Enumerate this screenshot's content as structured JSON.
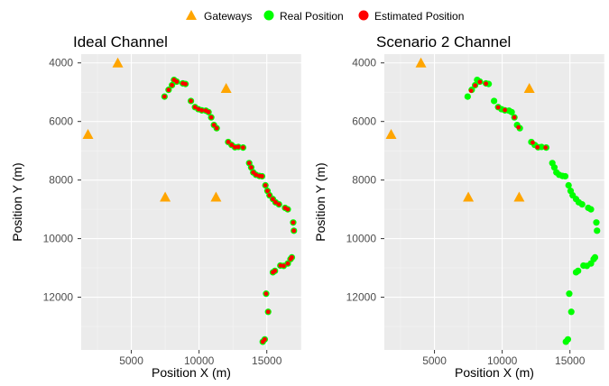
{
  "legend": {
    "items": [
      {
        "label": "Gateways",
        "shape": "triangle",
        "color": "#ffa500"
      },
      {
        "label": "Real Position",
        "shape": "circle",
        "color": "#00ff00"
      },
      {
        "label": "Estimated Position",
        "shape": "circle",
        "color": "#ff0000"
      }
    ]
  },
  "chart_data": [
    {
      "type": "scatter",
      "title": "Ideal Channel",
      "xlabel": "Position X (m)",
      "ylabel": "Position Y (m)",
      "xlim": [
        1300,
        17550
      ],
      "ylim": [
        3700,
        13800
      ],
      "y_reversed": true,
      "grid": true,
      "background": "#ebebeb",
      "gridline_color": "#ffffff",
      "xticks": [
        5000,
        10000,
        15000
      ],
      "xtick_labels": [
        "5000",
        "10000",
        "15000"
      ],
      "yticks": [
        4000,
        6000,
        8000,
        10000,
        12000
      ],
      "ytick_labels": [
        "4000",
        "6000",
        "8000",
        "10000",
        "12000"
      ],
      "legend_position": "top",
      "gateways": [
        [
          4000,
          4000
        ],
        [
          12000,
          4870
        ],
        [
          1800,
          6440
        ],
        [
          7500,
          8580
        ],
        [
          11250,
          8580
        ]
      ],
      "real": [
        [
          7450,
          5150
        ],
        [
          7750,
          4920
        ],
        [
          8000,
          4760
        ],
        [
          8150,
          4580
        ],
        [
          8350,
          4640
        ],
        [
          8800,
          4700
        ],
        [
          9000,
          4720
        ],
        [
          9400,
          5300
        ],
        [
          9700,
          5510
        ],
        [
          9950,
          5580
        ],
        [
          10200,
          5620
        ],
        [
          10500,
          5630
        ],
        [
          10700,
          5680
        ],
        [
          10900,
          5860
        ],
        [
          11100,
          6120
        ],
        [
          11300,
          6230
        ],
        [
          12150,
          6700
        ],
        [
          12400,
          6800
        ],
        [
          12650,
          6880
        ],
        [
          12900,
          6870
        ],
        [
          13250,
          6890
        ],
        [
          13700,
          7420
        ],
        [
          13850,
          7570
        ],
        [
          14000,
          7740
        ],
        [
          14200,
          7820
        ],
        [
          14450,
          7860
        ],
        [
          14650,
          7870
        ],
        [
          14900,
          8180
        ],
        [
          15050,
          8370
        ],
        [
          15200,
          8520
        ],
        [
          15450,
          8650
        ],
        [
          15650,
          8760
        ],
        [
          15900,
          8830
        ],
        [
          16350,
          8950
        ],
        [
          16550,
          9000
        ],
        [
          16950,
          9450
        ],
        [
          17000,
          9730
        ],
        [
          15450,
          11150
        ],
        [
          15600,
          11100
        ],
        [
          16000,
          10920
        ],
        [
          16250,
          10930
        ],
        [
          16550,
          10850
        ],
        [
          16750,
          10700
        ],
        [
          16850,
          10640
        ],
        [
          14950,
          11880
        ],
        [
          15100,
          12500
        ],
        [
          14850,
          13440
        ],
        [
          14700,
          13520
        ]
      ],
      "estimated": [
        [
          7450,
          5150
        ],
        [
          7750,
          4920
        ],
        [
          8000,
          4760
        ],
        [
          8150,
          4580
        ],
        [
          8350,
          4640
        ],
        [
          8800,
          4700
        ],
        [
          9000,
          4720
        ],
        [
          9400,
          5300
        ],
        [
          9700,
          5510
        ],
        [
          9950,
          5580
        ],
        [
          10200,
          5620
        ],
        [
          10500,
          5630
        ],
        [
          10700,
          5680
        ],
        [
          10900,
          5860
        ],
        [
          11100,
          6120
        ],
        [
          11300,
          6230
        ],
        [
          12150,
          6700
        ],
        [
          12400,
          6800
        ],
        [
          12650,
          6880
        ],
        [
          12900,
          6870
        ],
        [
          13250,
          6890
        ],
        [
          13700,
          7420
        ],
        [
          13850,
          7570
        ],
        [
          14000,
          7740
        ],
        [
          14200,
          7820
        ],
        [
          14450,
          7860
        ],
        [
          14650,
          7870
        ],
        [
          14900,
          8180
        ],
        [
          15050,
          8370
        ],
        [
          15200,
          8520
        ],
        [
          15450,
          8650
        ],
        [
          15650,
          8760
        ],
        [
          15900,
          8830
        ],
        [
          16350,
          8950
        ],
        [
          16550,
          9000
        ],
        [
          16950,
          9450
        ],
        [
          17000,
          9730
        ],
        [
          15450,
          11150
        ],
        [
          15600,
          11100
        ],
        [
          16000,
          10920
        ],
        [
          16250,
          10930
        ],
        [
          16550,
          10850
        ],
        [
          16750,
          10700
        ],
        [
          16850,
          10640
        ],
        [
          14950,
          11880
        ],
        [
          15100,
          12500
        ],
        [
          14850,
          13440
        ],
        [
          14700,
          13520
        ]
      ]
    },
    {
      "type": "scatter",
      "title": "Scenario 2 Channel",
      "xlabel": "Position X (m)",
      "ylabel": "Position Y (m)",
      "xlim": [
        1300,
        17550
      ],
      "ylim": [
        3700,
        13800
      ],
      "y_reversed": true,
      "grid": true,
      "background": "#ebebeb",
      "gridline_color": "#ffffff",
      "xticks": [
        5000,
        10000,
        15000
      ],
      "xtick_labels": [
        "5000",
        "10000",
        "15000"
      ],
      "yticks": [
        4000,
        6000,
        8000,
        10000,
        12000
      ],
      "ytick_labels": [
        "4000",
        "6000",
        "8000",
        "10000",
        "12000"
      ],
      "legend_position": "top",
      "gateways": [
        [
          4000,
          4000
        ],
        [
          12000,
          4870
        ],
        [
          1800,
          6440
        ],
        [
          7500,
          8580
        ],
        [
          11250,
          8580
        ]
      ],
      "real": [
        [
          7450,
          5150
        ],
        [
          7750,
          4920
        ],
        [
          8000,
          4760
        ],
        [
          8150,
          4580
        ],
        [
          8350,
          4640
        ],
        [
          8800,
          4700
        ],
        [
          9000,
          4720
        ],
        [
          9400,
          5300
        ],
        [
          9700,
          5510
        ],
        [
          9950,
          5580
        ],
        [
          10200,
          5620
        ],
        [
          10500,
          5630
        ],
        [
          10700,
          5680
        ],
        [
          10900,
          5860
        ],
        [
          11100,
          6120
        ],
        [
          11300,
          6230
        ],
        [
          12150,
          6700
        ],
        [
          12400,
          6800
        ],
        [
          12650,
          6880
        ],
        [
          12900,
          6870
        ],
        [
          13250,
          6890
        ],
        [
          13700,
          7420
        ],
        [
          13850,
          7570
        ],
        [
          14000,
          7740
        ],
        [
          14200,
          7820
        ],
        [
          14450,
          7860
        ],
        [
          14650,
          7870
        ],
        [
          14900,
          8180
        ],
        [
          15050,
          8370
        ],
        [
          15200,
          8520
        ],
        [
          15450,
          8650
        ],
        [
          15650,
          8760
        ],
        [
          15900,
          8830
        ],
        [
          16350,
          8950
        ],
        [
          16550,
          9000
        ],
        [
          16950,
          9450
        ],
        [
          17000,
          9730
        ],
        [
          15450,
          11150
        ],
        [
          15600,
          11100
        ],
        [
          16000,
          10920
        ],
        [
          16250,
          10930
        ],
        [
          16550,
          10850
        ],
        [
          16750,
          10700
        ],
        [
          16850,
          10640
        ],
        [
          14950,
          11880
        ],
        [
          15100,
          12500
        ],
        [
          14850,
          13440
        ],
        [
          14700,
          13520
        ]
      ],
      "estimated": [
        [
          7700,
          4950
        ],
        [
          8000,
          4770
        ],
        [
          8350,
          4650
        ],
        [
          8800,
          4710
        ],
        [
          9700,
          5520
        ],
        [
          10200,
          5610
        ],
        [
          10900,
          5860
        ],
        [
          11200,
          6200
        ],
        [
          12250,
          6720
        ],
        [
          12600,
          6880
        ],
        [
          13200,
          6890
        ]
      ]
    }
  ]
}
